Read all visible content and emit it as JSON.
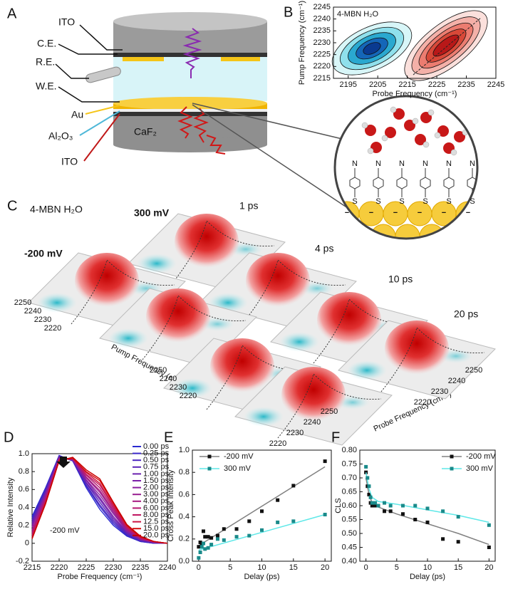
{
  "panel_a": {
    "label": "A",
    "ito_top": "ITO",
    "ce": "C.E.",
    "re": "R.E.",
    "we": "W.E.",
    "au": "Au",
    "al2o3": "Al₂O₃",
    "caf2": "CaF₂",
    "ito_bottom": "ITO",
    "nitrogen_labels": [
      "N",
      "N",
      "N",
      "N",
      "N",
      "N"
    ],
    "sulfur_labels": [
      "S",
      "S",
      "S",
      "S",
      "S",
      "S"
    ],
    "charge_labels": [
      "−",
      "−",
      "−",
      "−",
      "−",
      "−"
    ]
  },
  "panel_c": {
    "label": "C",
    "title": "4-MBN H₂O",
    "potentials": [
      "300 mV",
      "-200 mV"
    ],
    "delays": [
      "1 ps",
      "4 ps",
      "10 ps",
      "20 ps"
    ],
    "pump_ticks": [
      2250,
      2240,
      2230,
      2220
    ],
    "pump_label": "Pump Frequency (cm⁻¹)",
    "probe_ticks": [
      2250,
      2240,
      2230,
      2220
    ],
    "probe_label": "Probe Frequency (cm⁻¹)"
  },
  "chart_data": [
    {
      "panel": "B",
      "type": "contour",
      "annotation": "4-MBN H₂O",
      "x_label": "Probe Frequency (cm⁻¹)",
      "y_label": "Pump Frequency (cm⁻¹)",
      "xlim": [
        2190,
        2245
      ],
      "xticks": [
        2195,
        2205,
        2215,
        2225,
        2235,
        2245
      ],
      "ylim": [
        2215,
        2245
      ],
      "yticks": [
        2215,
        2220,
        2225,
        2230,
        2235,
        2240,
        2245
      ]
    },
    {
      "panel": "D",
      "type": "line",
      "annotation": "-200 mV",
      "x_label": "Probe Frequency (cm⁻¹)",
      "y_label": "Relative Intensity",
      "x": [
        2215,
        2217.5,
        2220,
        2222.5,
        2225,
        2227.5,
        2230,
        2232.5,
        2235,
        2237.5,
        2240
      ],
      "xlim": [
        2215,
        2240
      ],
      "xticks": [
        2215,
        2220,
        2225,
        2230,
        2235,
        2240
      ],
      "ylim": [
        -0.2,
        1
      ],
      "yticks": [
        -0.2,
        0,
        0.2,
        0.4,
        0.6,
        0.8,
        {
          "value": 1,
          "label": "1.0"
        }
      ],
      "series": [
        {
          "name": "0.00 ps",
          "color": "#2a2ad0",
          "values": [
            0.3,
            0.62,
            0.98,
            0.92,
            0.62,
            0.38,
            0.2,
            0.08,
            0.02,
            0,
            0
          ]
        },
        {
          "name": "0.25 ps",
          "color": "#3a28c8",
          "values": [
            0.28,
            0.61,
            0.98,
            0.92,
            0.64,
            0.41,
            0.22,
            0.09,
            0.02,
            0,
            0
          ]
        },
        {
          "name": "0.50 ps",
          "color": "#4a26c0",
          "values": [
            0.26,
            0.59,
            0.97,
            0.92,
            0.65,
            0.43,
            0.24,
            0.1,
            0.03,
            0,
            0
          ]
        },
        {
          "name": "0.75 ps",
          "color": "#5a24b8",
          "values": [
            0.24,
            0.58,
            0.97,
            0.93,
            0.67,
            0.46,
            0.26,
            0.11,
            0.03,
            0.01,
            0
          ]
        },
        {
          "name": "1.00 ps",
          "color": "#6a22b0",
          "values": [
            0.22,
            0.56,
            0.96,
            0.93,
            0.68,
            0.49,
            0.28,
            0.12,
            0.04,
            0.01,
            0
          ]
        },
        {
          "name": "1.50 ps",
          "color": "#7a20a8",
          "values": [
            0.2,
            0.55,
            0.96,
            0.93,
            0.7,
            0.51,
            0.3,
            0.13,
            0.04,
            0.01,
            0
          ]
        },
        {
          "name": "2.00 ps",
          "color": "#8a1ea0",
          "values": [
            0.18,
            0.54,
            0.95,
            0.94,
            0.71,
            0.54,
            0.33,
            0.14,
            0.05,
            0.01,
            0
          ]
        },
        {
          "name": "3.00 ps",
          "color": "#981c90",
          "values": [
            0.15,
            0.52,
            0.95,
            0.94,
            0.73,
            0.57,
            0.35,
            0.15,
            0.05,
            0.01,
            0
          ]
        },
        {
          "name": "4.00 ps",
          "color": "#a61a80",
          "values": [
            0.13,
            0.51,
            0.94,
            0.94,
            0.74,
            0.59,
            0.37,
            0.16,
            0.05,
            0.01,
            0
          ]
        },
        {
          "name": "6.00 ps",
          "color": "#b41870",
          "values": [
            0.11,
            0.49,
            0.94,
            0.94,
            0.76,
            0.62,
            0.39,
            0.17,
            0.06,
            0.02,
            0
          ]
        },
        {
          "name": "8.00 ps",
          "color": "#c01660",
          "values": [
            0.09,
            0.48,
            0.93,
            0.95,
            0.77,
            0.65,
            0.41,
            0.18,
            0.06,
            0.02,
            0
          ]
        },
        {
          "name": "12.5 ps",
          "color": "#cc1440",
          "values": [
            0.07,
            0.46,
            0.93,
            0.95,
            0.79,
            0.67,
            0.43,
            0.19,
            0.07,
            0.02,
            0
          ]
        },
        {
          "name": "15.0 ps",
          "color": "#d41010",
          "values": [
            0.05,
            0.45,
            0.92,
            0.95,
            0.8,
            0.7,
            0.45,
            0.2,
            0.07,
            0.02,
            0
          ]
        },
        {
          "name": "20.0 ps",
          "color": "#c80000",
          "values": [
            0.05,
            0.44,
            0.92,
            0.96,
            0.82,
            0.72,
            0.46,
            0.21,
            0.08,
            0.02,
            0
          ]
        }
      ]
    },
    {
      "panel": "E",
      "type": "scatter",
      "x_label": "Delay (ps)",
      "y_label": "Cross Peak Intensity",
      "x": [
        0,
        0.25,
        0.5,
        0.75,
        1,
        1.5,
        2,
        3,
        4,
        6,
        8,
        10,
        12.5,
        15,
        20
      ],
      "fit_x": [
        0,
        20
      ],
      "xlim": [
        -1,
        21
      ],
      "xticks": [
        0,
        5,
        10,
        15,
        20
      ],
      "ylim": [
        0,
        1
      ],
      "yticks": [
        {
          "value": 0,
          "label": "0.0"
        },
        0.2,
        0.4,
        0.6,
        0.8,
        {
          "value": 1,
          "label": "1.0"
        }
      ],
      "series": [
        {
          "name": "-200 mV",
          "color": "#111111",
          "line_color": "#808080",
          "values": [
            0.13,
            0.17,
            0.16,
            0.27,
            0.22,
            0.22,
            0.21,
            0.23,
            0.29,
            0.29,
            0.36,
            0.45,
            0.55,
            0.68,
            0.9
          ],
          "fit_values": [
            0.14,
            0.85
          ]
        },
        {
          "name": "300 mV",
          "color": "#1a8a8a",
          "line_color": "#5ee8e8",
          "values": [
            0.03,
            0.08,
            0.13,
            0.16,
            0.11,
            0.12,
            0.15,
            0.2,
            0.19,
            0.22,
            0.23,
            0.28,
            0.35,
            0.36,
            0.42
          ],
          "fit_values": [
            0.1,
            0.42
          ]
        }
      ]
    },
    {
      "panel": "F",
      "type": "scatter",
      "x_label": "Delay (ps)",
      "y_label": "CLS",
      "x": [
        0,
        0.25,
        0.5,
        0.75,
        1,
        1.5,
        2,
        3,
        4,
        6,
        8,
        10,
        12.5,
        15,
        20
      ],
      "fit_x": [
        0,
        0.5,
        1,
        2,
        5,
        10,
        15,
        20
      ],
      "xlim": [
        -1,
        21
      ],
      "xticks": [
        0,
        5,
        10,
        15,
        20
      ],
      "ylim": [
        0.4,
        0.8
      ],
      "yticks": [
        {
          "value": 0.4,
          "label": "0.40"
        },
        0.45,
        {
          "value": 0.5,
          "label": "0.50"
        },
        0.55,
        {
          "value": 0.6,
          "label": "0.60"
        },
        0.65,
        {
          "value": 0.7,
          "label": "0.70"
        },
        0.75,
        {
          "value": 0.8,
          "label": "0.80"
        }
      ],
      "series": [
        {
          "name": "-200 mV",
          "color": "#111111",
          "line_color": "#808080",
          "values": [
            0.72,
            0.67,
            0.64,
            0.61,
            0.6,
            0.6,
            0.6,
            0.58,
            0.58,
            0.57,
            0.55,
            0.54,
            0.48,
            0.47,
            0.45
          ],
          "fit_values": [
            0.7,
            0.64,
            0.61,
            0.595,
            0.57,
            0.535,
            0.5,
            0.46
          ]
        },
        {
          "name": "300 mV",
          "color": "#1a8a8a",
          "line_color": "#5ee8e8",
          "values": [
            0.74,
            0.7,
            0.67,
            0.63,
            0.61,
            0.61,
            0.6,
            0.61,
            0.6,
            0.6,
            0.6,
            0.59,
            0.58,
            0.56,
            0.53
          ],
          "fit_values": [
            0.72,
            0.66,
            0.63,
            0.615,
            0.605,
            0.585,
            0.565,
            0.54
          ]
        }
      ]
    }
  ]
}
